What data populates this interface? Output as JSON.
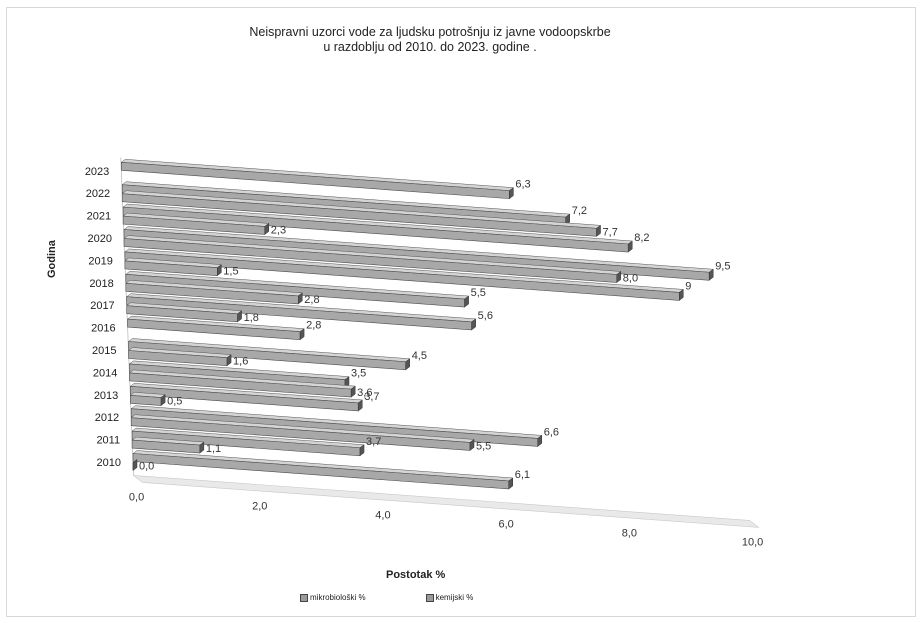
{
  "chart_data": {
    "type": "bar",
    "orientation": "horizontal",
    "title_lines": [
      "Neispravni uzorci vode za ljudsku potrošnju iz javne vodoopskrbe",
      "u razdoblju od 2010. do 2023. godine ."
    ],
    "xlabel": "Postotak %",
    "ylabel": "Godina",
    "xlim": [
      0,
      10
    ],
    "x_ticks": [
      "0,0",
      "2,0",
      "4,0",
      "6,0",
      "8,0",
      "10,0"
    ],
    "categories": [
      "2010",
      "2011",
      "2012",
      "2013",
      "2014",
      "2015",
      "2016",
      "2017",
      "2018",
      "2019",
      "2020",
      "2021",
      "2022",
      "2023"
    ],
    "series": [
      {
        "name": "mikrobiološki %",
        "values": [
          6.1,
          3.7,
          6.6,
          3.7,
          3.5,
          4.5,
          2.8,
          5.6,
          5.5,
          9.0,
          9.5,
          8.2,
          7.2,
          6.3
        ],
        "labels": [
          "6,1",
          "3,7",
          "6,6",
          "3,7",
          "3,5",
          "4,5",
          "2,8",
          "5,6",
          "5,5",
          "9",
          "9,5",
          "8,2",
          "7,2",
          "6,3"
        ]
      },
      {
        "name": "kemijski %",
        "values": [
          0.0,
          1.1,
          5.5,
          0.5,
          3.6,
          1.6,
          null,
          1.8,
          2.8,
          1.5,
          8.0,
          2.3,
          7.7,
          null
        ],
        "labels": [
          "0,0",
          "1,1",
          "5,5",
          "0,5",
          "3,6",
          "1,6",
          null,
          "1,8",
          "2,8",
          "1,5",
          "8,0",
          "2,3",
          "7,7",
          null
        ]
      }
    ],
    "legend_position": "bottom"
  }
}
